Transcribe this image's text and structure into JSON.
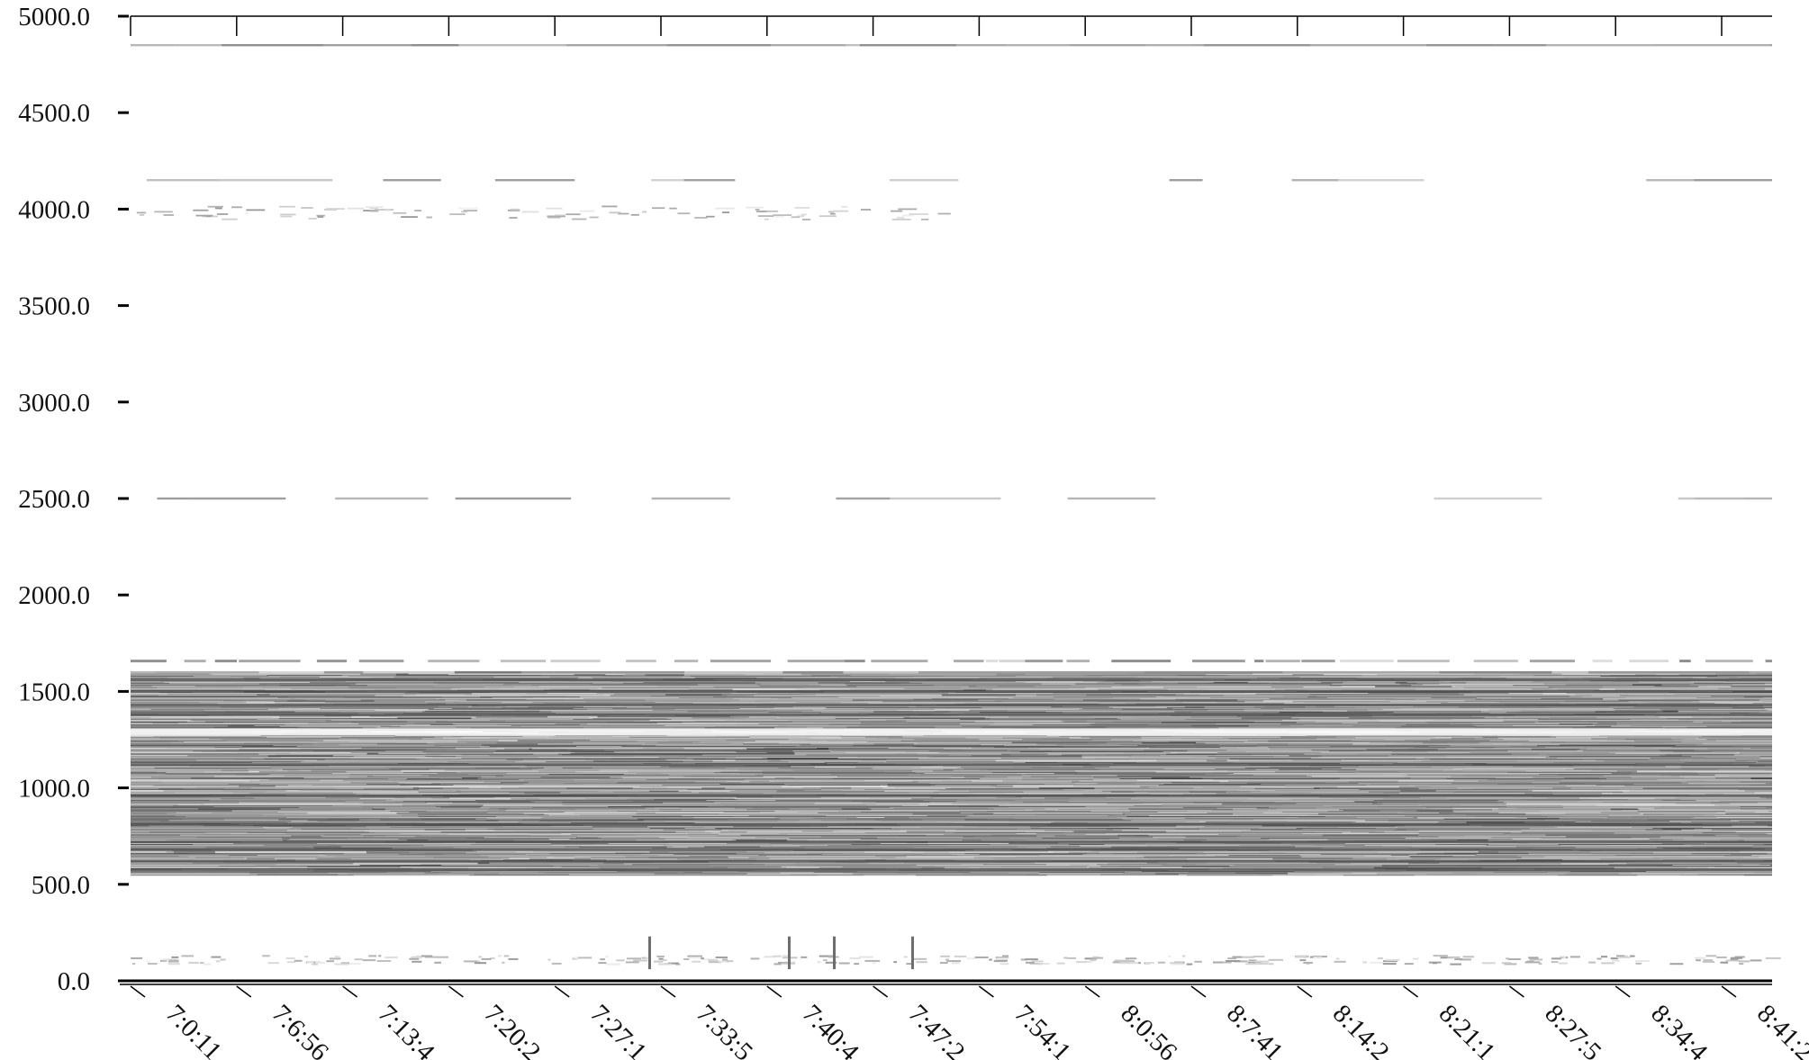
{
  "chart_data": {
    "type": "heatmap",
    "title": "",
    "xlabel": "",
    "ylabel": "",
    "ylim": [
      0,
      5000
    ],
    "y_ticks": [
      "0.0",
      "500.0",
      "1000.0",
      "1500.0",
      "2000.0",
      "2500.0",
      "3000.0",
      "3500.0",
      "4000.0",
      "4500.0",
      "5000.0"
    ],
    "x_ticks": [
      "7:0:11",
      "7:6:56",
      "7:13:4",
      "7:20:2",
      "7:27:1",
      "7:33:5",
      "7:40:4",
      "7:47:2",
      "7:54:1",
      "8:0:56",
      "8:7:41",
      "8:14:2",
      "8:21:1",
      "8:27:5",
      "8:34:4",
      "8:41:2"
    ],
    "colormap": "grayscale (darker = higher intensity)",
    "grid": false,
    "bands": [
      {
        "range": [
          550,
          1600
        ],
        "intensity": "high",
        "description": "dense dark striations"
      },
      {
        "range": [
          1600,
          1660
        ],
        "intensity": "medium"
      },
      {
        "range": [
          4850,
          4850
        ],
        "intensity": "medium",
        "description": "thin line"
      },
      {
        "range": [
          4150,
          4150
        ],
        "intensity": "low",
        "description": "thin line"
      },
      {
        "range": [
          3950,
          4020
        ],
        "intensity": "low",
        "description": "sparse speckles"
      },
      {
        "range": [
          2500,
          2500
        ],
        "intensity": "low",
        "description": "thin line"
      },
      {
        "range": [
          90,
          130
        ],
        "intensity": "low",
        "description": "sparse speckles"
      }
    ],
    "colors": {
      "background": "#ffffff",
      "axis": "#000000",
      "mark": "#333333"
    }
  }
}
